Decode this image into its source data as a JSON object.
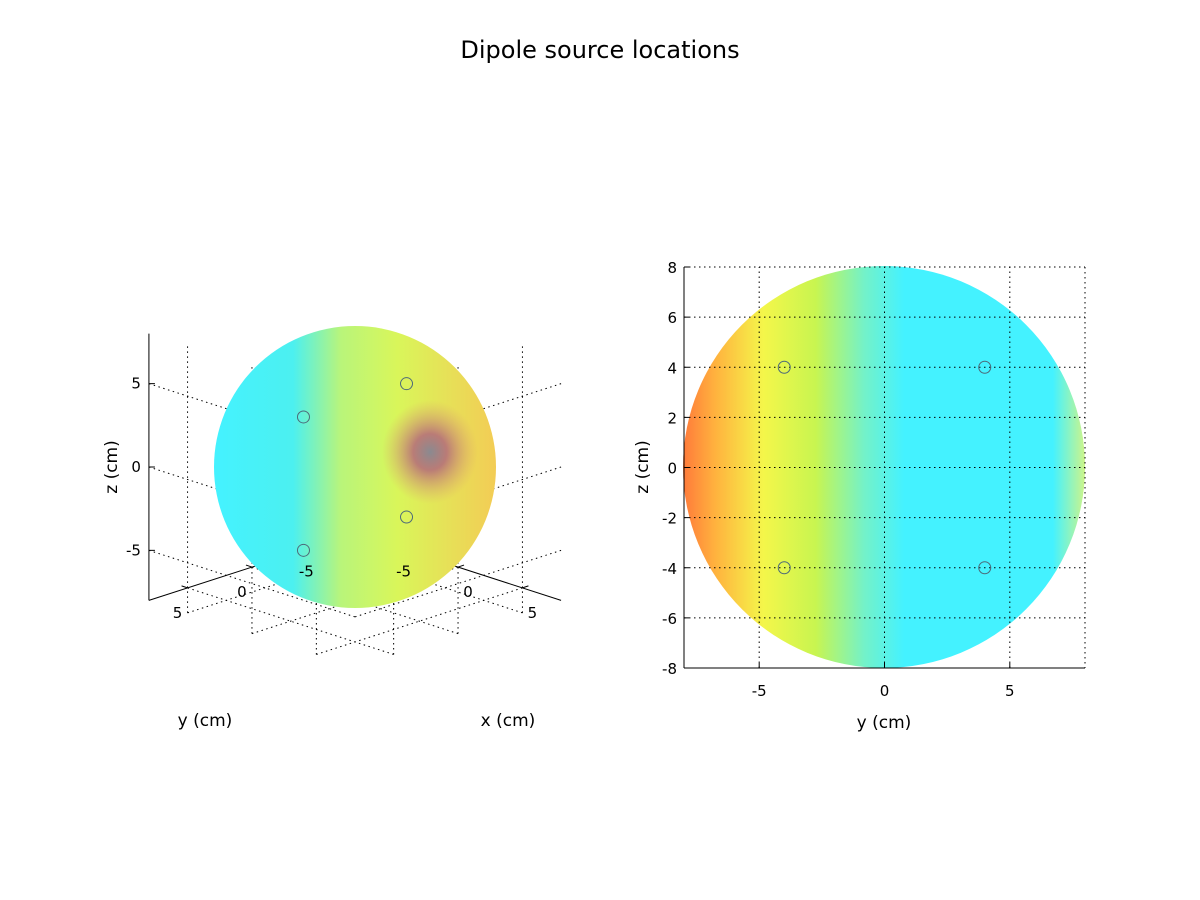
{
  "title": "Dipole source locations",
  "chart_data": [
    {
      "type": "scatter",
      "view": "3d",
      "xlabel": "x (cm)",
      "ylabel": "y (cm)",
      "zlabel": "z (cm)",
      "xlim": [
        -8,
        8
      ],
      "ylim": [
        -8,
        8
      ],
      "zlim": [
        -8,
        8
      ],
      "x_ticks": [
        -5,
        0,
        5
      ],
      "y_ticks": [
        -5,
        0,
        5
      ],
      "z_ticks": [
        -5,
        0,
        5
      ],
      "grid": true,
      "surface": "sphere",
      "points": [
        {
          "x": 0,
          "y": -4,
          "z": 4
        },
        {
          "x": 0,
          "y": 4,
          "z": 4
        },
        {
          "x": 0,
          "y": -4,
          "z": -4
        },
        {
          "x": 0,
          "y": 4,
          "z": -4
        }
      ]
    },
    {
      "type": "scatter",
      "view": "2d",
      "xlabel": "y (cm)",
      "ylabel": "z (cm)",
      "xlim": [
        -8,
        8
      ],
      "ylim": [
        -8,
        8
      ],
      "x_ticks": [
        -5,
        0,
        5
      ],
      "y_ticks": [
        -8,
        -6,
        -4,
        -2,
        0,
        2,
        4,
        6,
        8
      ],
      "grid": true,
      "surface": "disk",
      "points": [
        {
          "x": -4,
          "y": 4
        },
        {
          "x": 4,
          "y": 4
        },
        {
          "x": -4,
          "y": -4
        },
        {
          "x": 4,
          "y": -4
        }
      ]
    }
  ],
  "colors": {
    "cyan": "#44f2ff",
    "yellow": "#f4f64a",
    "orange": "#ff8c3a",
    "marker": "#4d6a7a"
  }
}
